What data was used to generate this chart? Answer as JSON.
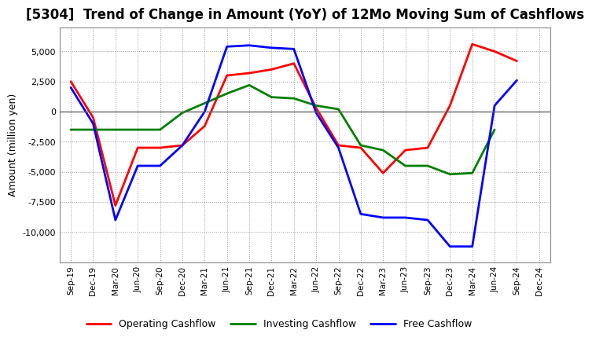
{
  "title": "[5304]  Trend of Change in Amount (YoY) of 12Mo Moving Sum of Cashflows",
  "ylabel": "Amount (million yen)",
  "x_labels": [
    "Sep-19",
    "Dec-19",
    "Mar-20",
    "Jun-20",
    "Sep-20",
    "Dec-20",
    "Mar-21",
    "Jun-21",
    "Sep-21",
    "Dec-21",
    "Mar-22",
    "Jun-22",
    "Sep-22",
    "Dec-22",
    "Mar-23",
    "Jun-23",
    "Sep-23",
    "Dec-23",
    "Mar-24",
    "Jun-24",
    "Sep-24",
    "Dec-24"
  ],
  "operating": [
    2500,
    -500,
    -7800,
    -3000,
    -3000,
    -2800,
    -1200,
    3000,
    3200,
    3500,
    4000,
    300,
    -2800,
    -3000,
    -5100,
    -3200,
    -3000,
    500,
    5600,
    5000,
    4200,
    null
  ],
  "investing": [
    -1500,
    -1500,
    -1500,
    -1500,
    -1500,
    -100,
    700,
    1500,
    2200,
    1200,
    1100,
    500,
    200,
    -2800,
    -3200,
    -4500,
    -4500,
    -5200,
    -5100,
    -1500,
    null,
    null
  ],
  "free": [
    2000,
    -1000,
    -9000,
    -4500,
    -4500,
    -2800,
    0,
    5400,
    5500,
    5300,
    5200,
    -100,
    -3000,
    -8500,
    -8800,
    -8800,
    -9000,
    -11200,
    -11200,
    500,
    2600,
    null
  ],
  "operating_color": "#FF0000",
  "investing_color": "#008000",
  "free_color": "#0000FF",
  "ylim": [
    -12500,
    7000
  ],
  "yticks": [
    -10000,
    -7500,
    -5000,
    -2500,
    0,
    2500,
    5000
  ],
  "bg_color": "#FFFFFF",
  "plot_bg_color": "#FFFFFF",
  "grid_color": "#999999",
  "title_fontsize": 12,
  "legend_labels": [
    "Operating Cashflow",
    "Investing Cashflow",
    "Free Cashflow"
  ]
}
